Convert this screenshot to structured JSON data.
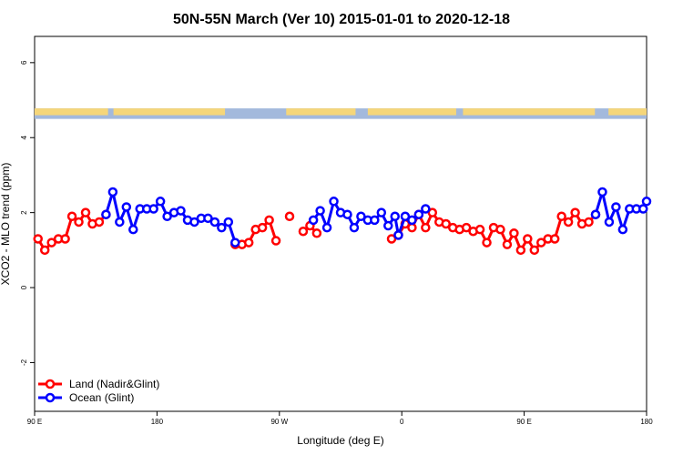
{
  "chart_data": {
    "type": "line",
    "title": "50N-55N March (Ver 10)   2015-01-01 to 2020-12-18",
    "xlabel": "Longitude (deg E)",
    "ylabel": "XCO2 - MLO trend (ppm)",
    "xlim": [
      90,
      540
    ],
    "ylim": [
      -3.3,
      6.7
    ],
    "x_ticks": [
      {
        "value": 90,
        "label": "90 E"
      },
      {
        "value": 180,
        "label": "180"
      },
      {
        "value": 270,
        "label": "90 W"
      },
      {
        "value": 360,
        "label": "0"
      },
      {
        "value": 450,
        "label": "90 E"
      },
      {
        "value": 540,
        "label": "180"
      }
    ],
    "y_ticks": [
      {
        "value": -2,
        "label": "-2"
      },
      {
        "value": 0,
        "label": "0"
      },
      {
        "value": 2,
        "label": "2"
      },
      {
        "value": 4,
        "label": "4"
      },
      {
        "value": 6,
        "label": "6"
      }
    ],
    "landmask_band": {
      "y_range": [
        4.5,
        4.78
      ],
      "land_color": "#f5d67a",
      "ocean_color": "#a3b9dc"
    },
    "series": [
      {
        "name": "Land (Nadir&Glint)",
        "color": "#ff0000",
        "points": [
          [
            92.5,
            1.3
          ],
          [
            97.5,
            1.0
          ],
          [
            102.5,
            1.2
          ],
          [
            107.5,
            1.3
          ],
          [
            112.5,
            1.3
          ],
          [
            117.5,
            1.9
          ],
          [
            122.5,
            1.75
          ],
          [
            127.5,
            2.0
          ],
          [
            132.5,
            1.7
          ],
          [
            137.5,
            1.75
          ],
          [
            142.5,
            1.95
          ],
          [
            null,
            null
          ],
          [
            237.5,
            1.15
          ],
          [
            242.5,
            1.15
          ],
          [
            247.5,
            1.2
          ],
          [
            252.5,
            1.55
          ],
          [
            257.5,
            1.6
          ],
          [
            262.5,
            1.8
          ],
          [
            267.5,
            1.25
          ],
          [
            null,
            null
          ],
          [
            277.5,
            1.9
          ],
          [
            null,
            null
          ],
          [
            287.5,
            1.5
          ],
          [
            292.5,
            1.65
          ],
          [
            297.5,
            1.45
          ],
          [
            null,
            null
          ],
          [
            352.5,
            1.3
          ],
          [
            357.5,
            1.4
          ],
          [
            362.5,
            1.7
          ],
          [
            367.5,
            1.6
          ],
          [
            372.5,
            1.95
          ],
          [
            377.5,
            1.6
          ],
          [
            382.5,
            2.0
          ],
          [
            387.5,
            1.75
          ],
          [
            392.5,
            1.7
          ],
          [
            397.5,
            1.6
          ],
          [
            402.5,
            1.55
          ],
          [
            407.5,
            1.6
          ],
          [
            412.5,
            1.5
          ],
          [
            417.5,
            1.55
          ],
          [
            422.5,
            1.2
          ],
          [
            427.5,
            1.6
          ],
          [
            432.5,
            1.55
          ],
          [
            437.5,
            1.15
          ],
          [
            442.5,
            1.45
          ],
          [
            447.5,
            1.0
          ],
          [
            452.5,
            1.3
          ],
          [
            457.5,
            1.0
          ],
          [
            462.5,
            1.2
          ],
          [
            467.5,
            1.3
          ],
          [
            472.5,
            1.3
          ],
          [
            477.5,
            1.9
          ],
          [
            482.5,
            1.75
          ],
          [
            487.5,
            2.0
          ],
          [
            492.5,
            1.7
          ],
          [
            497.5,
            1.75
          ],
          [
            502.5,
            1.95
          ]
        ]
      },
      {
        "name": "Ocean (Glint)",
        "color": "#0000ff",
        "points": [
          [
            142.5,
            1.95
          ],
          [
            147.5,
            2.55
          ],
          [
            152.5,
            1.75
          ],
          [
            157.5,
            2.15
          ],
          [
            162.5,
            1.55
          ],
          [
            167.5,
            2.1
          ],
          [
            172.5,
            2.1
          ],
          [
            177.5,
            2.1
          ],
          [
            182.5,
            2.3
          ],
          [
            187.5,
            1.9
          ],
          [
            192.5,
            2.0
          ],
          [
            197.5,
            2.05
          ],
          [
            202.5,
            1.8
          ],
          [
            207.5,
            1.75
          ],
          [
            212.5,
            1.85
          ],
          [
            217.5,
            1.85
          ],
          [
            222.5,
            1.75
          ],
          [
            227.5,
            1.6
          ],
          [
            232.5,
            1.75
          ],
          [
            237.5,
            1.2
          ],
          [
            null,
            null
          ],
          [
            295.0,
            1.8
          ],
          [
            300.0,
            2.05
          ],
          [
            305.0,
            1.6
          ],
          [
            310.0,
            2.3
          ],
          [
            315.0,
            2.0
          ],
          [
            320.0,
            1.95
          ],
          [
            325.0,
            1.6
          ],
          [
            330.0,
            1.9
          ],
          [
            335.0,
            1.8
          ],
          [
            340.0,
            1.8
          ],
          [
            345.0,
            2.0
          ],
          [
            350.0,
            1.65
          ],
          [
            355.0,
            1.9
          ],
          [
            357.5,
            1.4
          ],
          [
            362.5,
            1.9
          ],
          [
            367.5,
            1.8
          ],
          [
            372.5,
            1.95
          ],
          [
            377.5,
            2.1
          ],
          [
            null,
            null
          ],
          [
            502.5,
            1.95
          ],
          [
            507.5,
            2.55
          ],
          [
            512.5,
            1.75
          ],
          [
            517.5,
            2.15
          ],
          [
            522.5,
            1.55
          ],
          [
            527.5,
            2.1
          ],
          [
            532.5,
            2.1
          ],
          [
            537.5,
            2.1
          ],
          [
            540.0,
            2.3
          ]
        ]
      }
    ]
  }
}
